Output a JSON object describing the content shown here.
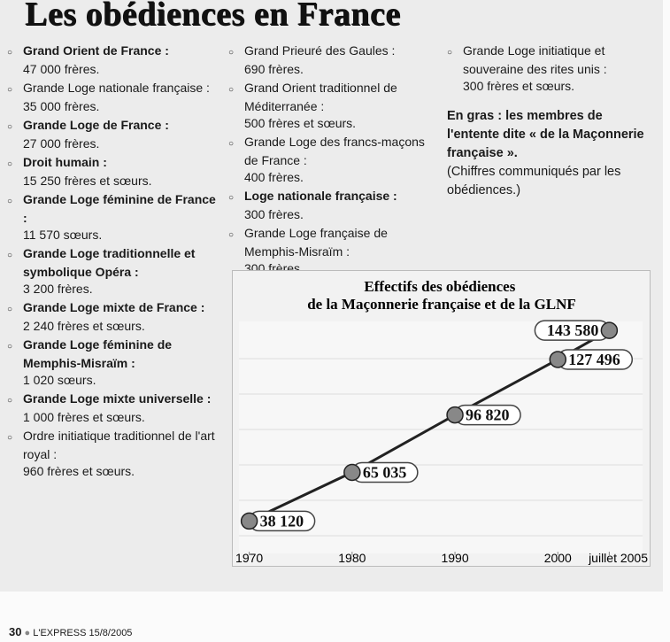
{
  "title": "Les obédiences en France",
  "columns": [
    {
      "items": [
        {
          "name": "Grand Orient de France :",
          "detail": "47 000 frères.",
          "bold": true
        },
        {
          "name": "Grande Loge nationale française :",
          "detail": "35 000 frères.",
          "bold": false
        },
        {
          "name": "Grande Loge de France :",
          "detail": "27 000 frères.",
          "bold": true
        },
        {
          "name": "Droit humain :",
          "detail": "15 250 frères et sœurs.",
          "bold": true
        },
        {
          "name": "Grande Loge féminine de France :",
          "detail": "11 570 sœurs.",
          "bold": true
        },
        {
          "name": "Grande Loge traditionnelle et symbolique Opéra :",
          "detail": "3 200 frères.",
          "bold": true
        },
        {
          "name": "Grande Loge mixte de France :",
          "detail": "2 240 frères et sœurs.",
          "bold": true
        },
        {
          "name": "Grande Loge féminine de Memphis-Misraïm :",
          "detail": "1 020 sœurs.",
          "bold": true
        },
        {
          "name": "Grande Loge mixte universelle :",
          "detail": "1 000 frères et sœurs.",
          "bold": true
        },
        {
          "name": "Ordre initiatique traditionnel de l'art royal :",
          "detail": "960 frères et sœurs.",
          "bold": false
        }
      ]
    },
    {
      "items": [
        {
          "name": "Grand Prieuré des Gaules :",
          "detail": "690 frères.",
          "bold": false
        },
        {
          "name": "Grand Orient traditionnel de Méditerranée :",
          "detail": "500 frères et sœurs.",
          "bold": false
        },
        {
          "name": "Grande Loge des francs-maçons de France :",
          "detail": "400 frères.",
          "bold": false
        },
        {
          "name": "Loge nationale française :",
          "detail": "300 frères.",
          "bold": true
        },
        {
          "name": "Grande Loge française de Memphis-Misraïm :",
          "detail": "300 frères.",
          "bold": false
        }
      ]
    },
    {
      "items": [
        {
          "name": "Grande Loge initiatique et souveraine des rites unis :",
          "detail": "300 frères et sœurs.",
          "bold": false
        }
      ]
    }
  ],
  "note": {
    "bold": "En gras : les membres de l'entente dite « de la Maçonnerie française ».",
    "source": "(Chiffres communiqués par les obédiences.)"
  },
  "chart_data": {
    "type": "line",
    "title": "Effectifs des obédiences de la Maçonnerie française et de la GLNF",
    "x": [
      1970,
      1980,
      1990,
      2000,
      2005
    ],
    "values": [
      38120,
      65035,
      96820,
      127496,
      143580
    ],
    "value_labels": [
      "38 120",
      "65 035",
      "96 820",
      "127 496",
      "143 580"
    ],
    "xlim": [
      1969,
      2006
    ],
    "xticks": [
      1970,
      1980,
      1990,
      2000,
      {
        "value": 2005,
        "label": "juillet 2005"
      }
    ],
    "ylim": [
      30000,
      150000
    ],
    "color": "#222222"
  },
  "footer": {
    "page": "30",
    "source": "L'EXPRESS 15/8/2005"
  }
}
